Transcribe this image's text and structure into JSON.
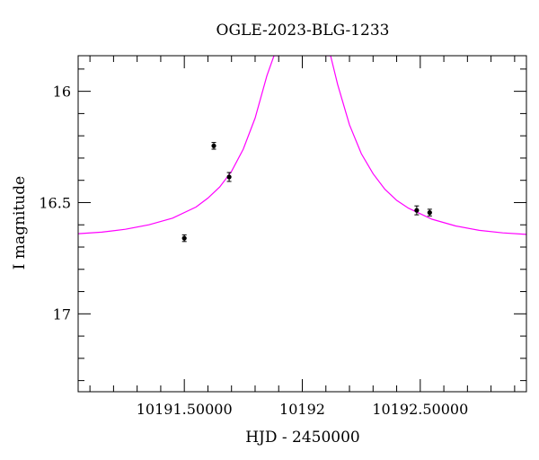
{
  "chart_data": {
    "type": "scatter",
    "title": "OGLE-2023-BLG-1233",
    "xlabel": "HJD - 2450000",
    "ylabel": "I magnitude",
    "xlim": [
      10191.05,
      10192.95
    ],
    "ylim": [
      17.35,
      15.84
    ],
    "y_inverted": true,
    "x_major_ticks": [
      10191.5,
      10192,
      10192.5
    ],
    "x_tick_labels": [
      "10191.50000",
      "10192",
      "10192.50000"
    ],
    "y_major_ticks": [
      16,
      16.5,
      17
    ],
    "y_tick_labels": [
      "16",
      "16.5",
      "17"
    ],
    "grid": false,
    "series": [
      {
        "kind": "points",
        "color": "#000000",
        "points": [
          {
            "x": 10191.5,
            "y": 16.66,
            "err": 0.015
          },
          {
            "x": 10191.625,
            "y": 16.245,
            "err": 0.015
          },
          {
            "x": 10191.69,
            "y": 16.385,
            "err": 0.02
          },
          {
            "x": 10192.485,
            "y": 16.535,
            "err": 0.02
          },
          {
            "x": 10192.54,
            "y": 16.545,
            "err": 0.015
          }
        ]
      },
      {
        "kind": "model",
        "color": "#ff00ff",
        "x": [
          10191.05,
          10191.15,
          10191.25,
          10191.35,
          10191.45,
          10191.55,
          10191.6,
          10191.65,
          10191.7,
          10191.75,
          10191.8,
          10191.85,
          10191.88,
          10191.9,
          10192.1,
          10192.12,
          10192.15,
          10192.2,
          10192.25,
          10192.3,
          10192.35,
          10192.4,
          10192.45,
          10192.55,
          10192.65,
          10192.75,
          10192.85,
          10192.95
        ],
        "y": [
          16.64,
          16.633,
          16.62,
          16.6,
          16.57,
          16.52,
          16.48,
          16.43,
          16.36,
          16.26,
          16.12,
          15.93,
          15.84,
          15.84,
          15.84,
          15.84,
          15.97,
          16.15,
          16.28,
          16.37,
          16.44,
          16.49,
          16.525,
          16.575,
          16.605,
          16.625,
          16.636,
          16.643
        ]
      }
    ]
  }
}
